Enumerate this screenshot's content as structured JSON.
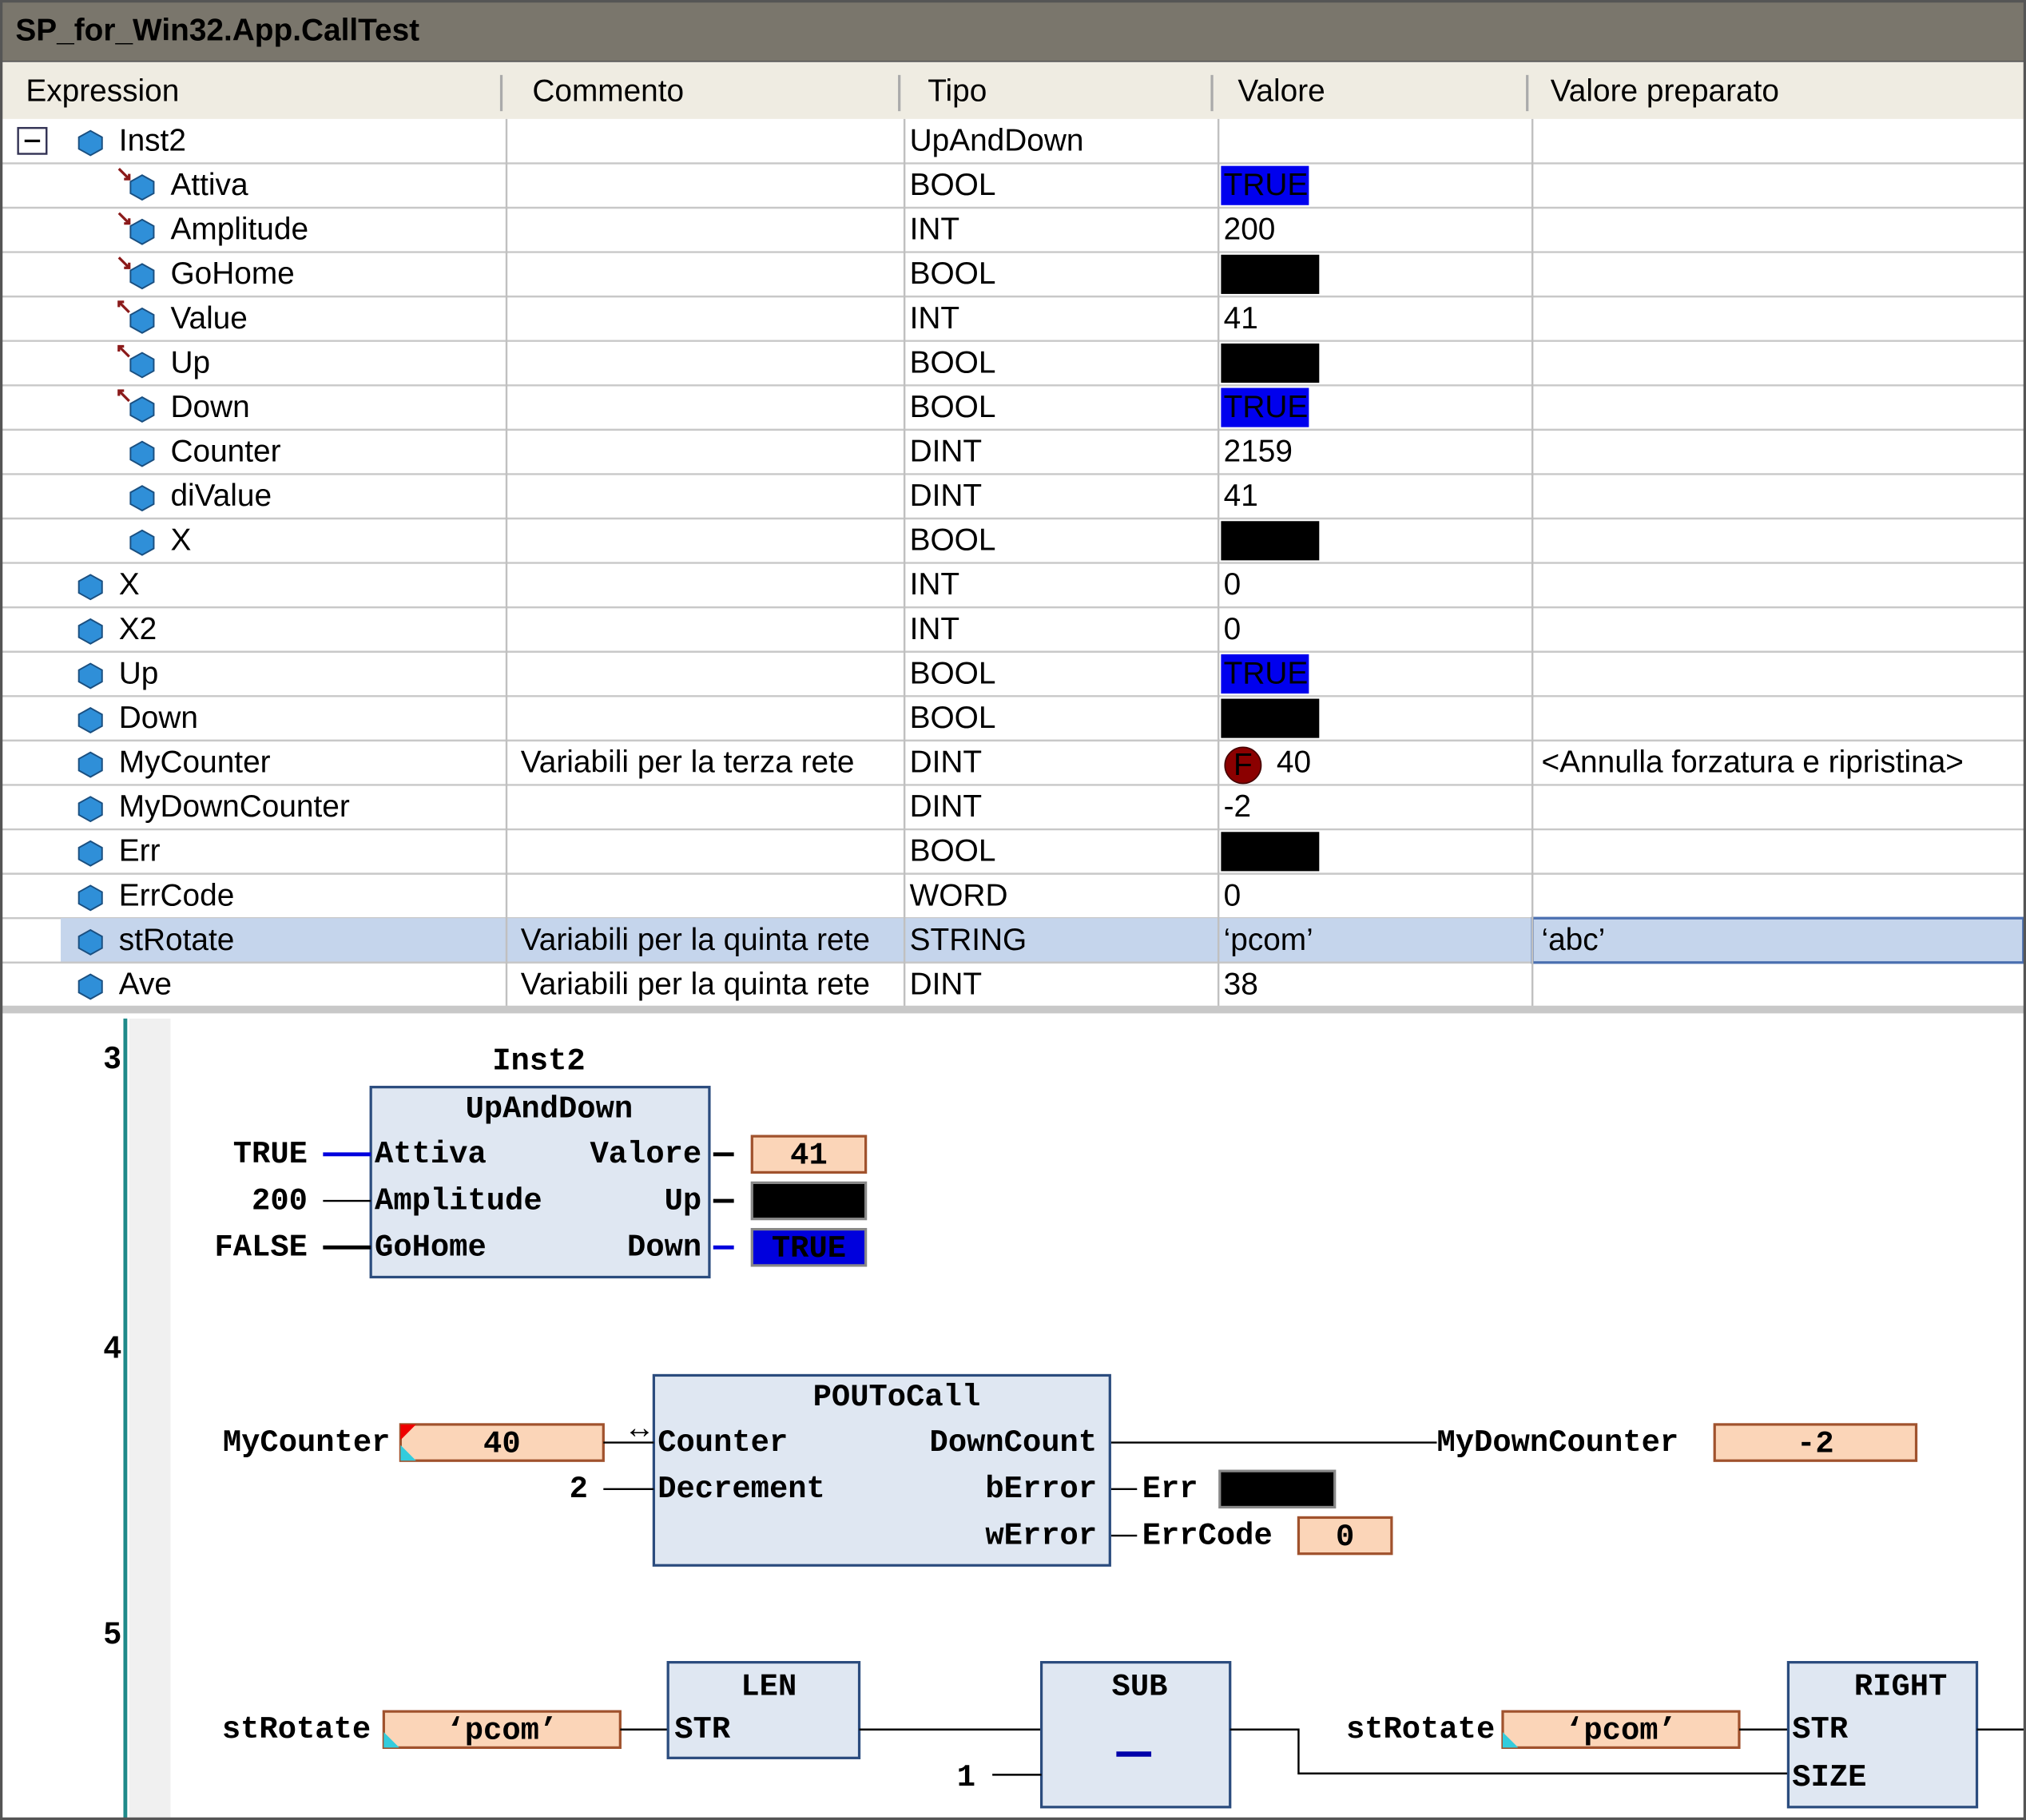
{
  "window": {
    "title": "SP_for_Win32.App.CallTest"
  },
  "table": {
    "headers": [
      "Expression",
      "Commento",
      "Tipo",
      "Valore",
      "Valore preparato"
    ],
    "rows": [
      {
        "expression": "Inst2",
        "type": "UpAndDown"
      },
      {
        "expression": "Attiva",
        "type": "BOOL",
        "value": "TRUE"
      },
      {
        "expression": "Amplitude",
        "type": "INT",
        "value": "200"
      },
      {
        "expression": "GoHome",
        "type": "BOOL",
        "value": "FALSE"
      },
      {
        "expression": "Value",
        "type": "INT",
        "value": "41"
      },
      {
        "expression": "Up",
        "type": "BOOL",
        "value": "FALSE"
      },
      {
        "expression": "Down",
        "type": "BOOL",
        "value": "TRUE"
      },
      {
        "expression": "Counter",
        "type": "DINT",
        "value": "2159"
      },
      {
        "expression": "diValue",
        "type": "DINT",
        "value": "41"
      },
      {
        "expression": "X",
        "type": "BOOL",
        "value": "FALSE"
      },
      {
        "expression": "X",
        "type": "INT",
        "value": "0"
      },
      {
        "expression": "X2",
        "type": "INT",
        "value": "0"
      },
      {
        "expression": "Up",
        "type": "BOOL",
        "value": "TRUE"
      },
      {
        "expression": "Down",
        "type": "BOOL",
        "value": "FALSE"
      },
      {
        "expression": "MyCounter",
        "comment": "Variabili per la terza rete",
        "type": "DINT",
        "forced_badge": "F",
        "value": "40",
        "prepared": "<Annulla forzatura e ripristina>"
      },
      {
        "expression": "MyDownCounter",
        "type": "DINT",
        "value": "-2"
      },
      {
        "expression": "Err",
        "type": "BOOL",
        "value": "FALSE"
      },
      {
        "expression": "ErrCode",
        "type": "WORD",
        "value": "0"
      },
      {
        "expression": "stRotate",
        "comment": "Variabili per la quinta rete",
        "type": "STRING",
        "value": "‘pcom’",
        "prepared": "‘abc’"
      },
      {
        "expression": "Ave",
        "comment": "Variabili per la quinta rete",
        "type": "DINT",
        "value": "38"
      }
    ]
  },
  "networks": [
    {
      "number": "3",
      "instance": "Inst2",
      "block": "UpAndDown",
      "inputs": [
        {
          "pin": "Attiva",
          "value": "TRUE"
        },
        {
          "pin": "Amplitude",
          "value": "200"
        },
        {
          "pin": "GoHome",
          "value": "FALSE"
        }
      ],
      "outputs": [
        {
          "pin": "Valore",
          "value": "41"
        },
        {
          "pin": "Up",
          "value": "FALSE"
        },
        {
          "pin": "Down",
          "value": "TRUE"
        }
      ]
    },
    {
      "number": "4",
      "block": "POUToCall",
      "inputs": [
        {
          "pin": "Counter",
          "variable": "MyCounter",
          "value": "40",
          "symbol": "↔"
        },
        {
          "pin": "Decrement",
          "value": "2"
        }
      ],
      "outputs": [
        {
          "pin": "DownCount",
          "variable": "MyDownCounter",
          "value": "-2"
        },
        {
          "pin": "bError",
          "variable": "Err",
          "value": "FALSE"
        },
        {
          "pin": "wError",
          "variable": "ErrCode",
          "value": "0"
        }
      ]
    },
    {
      "number": "5",
      "blocks": [
        {
          "name": "LEN",
          "inputs": [
            "STR"
          ]
        },
        {
          "name": "SUB"
        },
        {
          "name": "RIGHT",
          "inputs": [
            "STR",
            "SIZE"
          ]
        }
      ],
      "variables": [
        {
          "name": "stRotate",
          "value": "‘pcom’"
        },
        {
          "name": "stRotate",
          "value": "‘pcom’"
        }
      ],
      "constant": "1"
    }
  ]
}
